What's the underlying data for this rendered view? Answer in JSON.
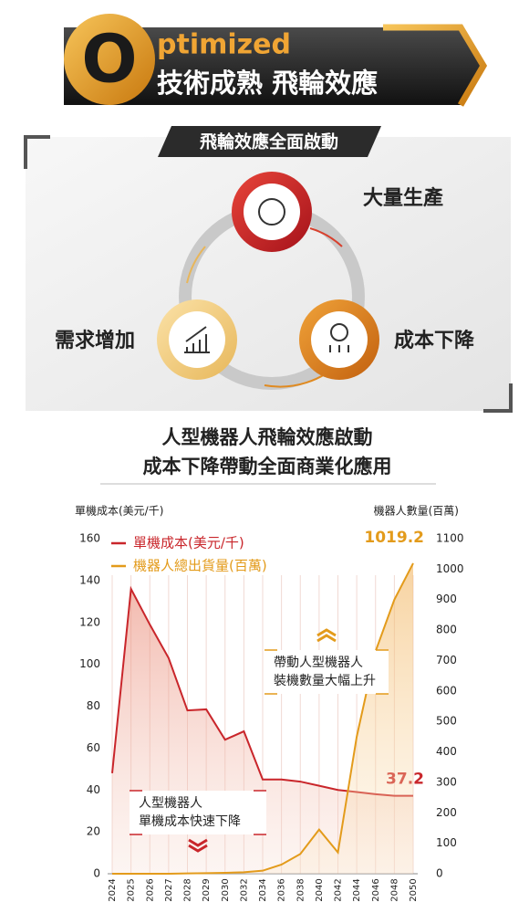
{
  "header": {
    "badge_letter": "O",
    "badge_word": "ptimized",
    "title": "技術成熟 飛輪效應"
  },
  "flywheel": {
    "title": "飛輪效應全面啟動",
    "nodes": [
      {
        "label": "大量生產"
      },
      {
        "label": "成本下降"
      },
      {
        "label": "需求增加"
      }
    ]
  },
  "chart_section": {
    "title_lines": [
      "人型機器人飛輪效應啟動",
      "成本下降帶動全面商業化應用"
    ]
  },
  "chart_data": {
    "type": "line",
    "y_label": "單機成本(美元/千)",
    "y2_label": "機器人數量(百萬)",
    "categories": [
      "2024",
      "2025",
      "2026",
      "2027",
      "2028",
      "2029",
      "2030",
      "2032",
      "2034",
      "2036",
      "2038",
      "2040",
      "2042",
      "2044",
      "2046",
      "2048",
      "2050"
    ],
    "series": [
      {
        "name": "單機成本(美元/千)",
        "color": "#c9262b",
        "values": [
          48,
          136,
          119,
          103,
          78,
          78.5,
          64,
          68,
          45,
          45,
          44,
          42,
          40,
          39,
          38,
          37.2,
          37.2
        ]
      },
      {
        "name": "機器人總出貨量(百萬)",
        "color": "#e39b1b",
        "axis": "y2",
        "values": [
          0,
          0,
          0,
          0,
          1,
          2,
          3,
          5,
          10,
          30,
          65,
          145,
          70,
          450,
          730,
          900,
          1019.2
        ]
      }
    ],
    "ylim": [
      0,
      160
    ],
    "yticks": [
      0,
      20,
      40,
      60,
      80,
      100,
      120,
      140,
      160
    ],
    "y2lim": [
      0,
      1100
    ],
    "y2ticks": [
      0,
      100,
      200,
      300,
      400,
      500,
      600,
      700,
      800,
      900,
      1000,
      1100
    ],
    "annotations": [
      {
        "lines": [
          "帶動人型機器人",
          "裝機數量大幅上升"
        ]
      },
      {
        "lines": [
          "人型機器人",
          "單機成本快速下降"
        ]
      }
    ]
  }
}
